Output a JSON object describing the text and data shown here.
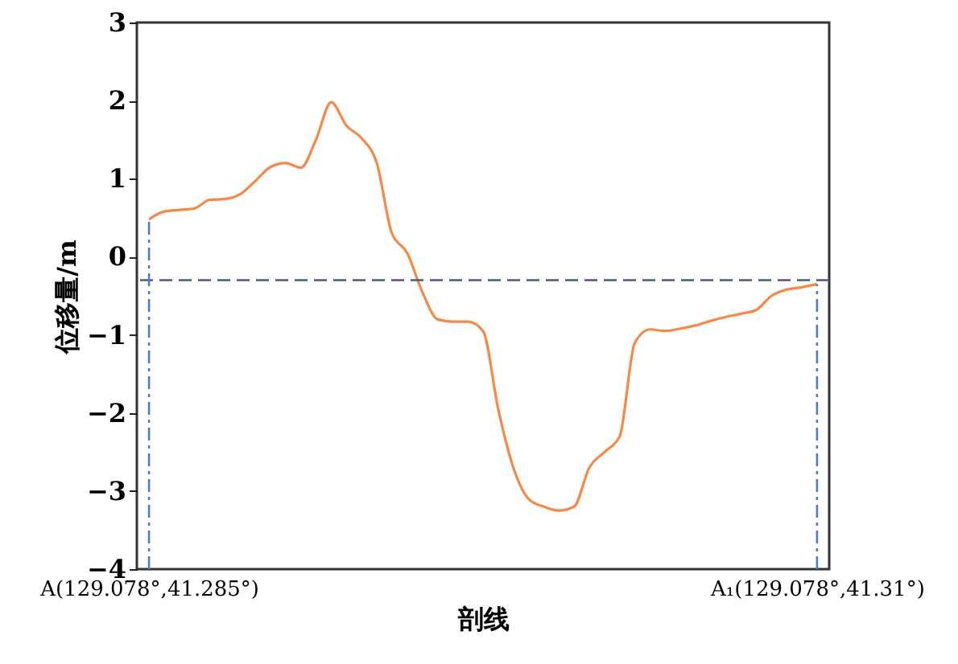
{
  "chart_data": {
    "type": "line",
    "xlabel": "剖线",
    "ylabel": "位移量/m",
    "categories": [
      "A(129.078°,41.285°)",
      null,
      null,
      null,
      null,
      null,
      null,
      null,
      null,
      null,
      null,
      null,
      null,
      null,
      null,
      null,
      null,
      null,
      null,
      null,
      null,
      null,
      null,
      null,
      null,
      null,
      null,
      null,
      null,
      null,
      null,
      null,
      null,
      null,
      null,
      null,
      null,
      null,
      null,
      null,
      null,
      null,
      null,
      null,
      "A₁(129.078°,41.31°)"
    ],
    "series": [
      {
        "color": "#f4894a",
        "values": [
          0.48,
          0.58,
          0.6,
          0.62,
          0.73,
          0.74,
          0.8,
          0.97,
          1.15,
          1.2,
          1.14,
          1.5,
          1.98,
          1.68,
          1.52,
          1.2,
          0.3,
          0.05,
          -0.45,
          -0.8,
          -0.83,
          -0.83,
          -0.95,
          -1.95,
          -2.7,
          -3.1,
          -3.2,
          -3.25,
          -3.2,
          -2.7,
          -2.5,
          -2.3,
          -1.1,
          -0.93,
          -0.95,
          -0.92,
          -0.88,
          -0.82,
          -0.77,
          -0.73,
          -0.68,
          -0.5,
          -0.42,
          -0.39,
          -0.35
        ]
      }
    ],
    "ylim": [
      -4,
      3
    ],
    "yticks": [
      -4,
      -3,
      -2,
      -1,
      0,
      1,
      2,
      3
    ],
    "ref_lines": [
      {
        "axis": "y",
        "value": -0.3,
        "color": "#4a5a78",
        "line_style": "dashed"
      },
      {
        "axis": "x",
        "value": "A(129.078°,41.285°)",
        "color": "#4f7fc0",
        "line_style": "dashdot"
      },
      {
        "axis": "x",
        "value": "A₁(129.078°,41.31°)",
        "color": "#4f7fc0",
        "line_style": "dashdot"
      }
    ],
    "grid": false,
    "line_style": "solid",
    "marker": "none"
  }
}
